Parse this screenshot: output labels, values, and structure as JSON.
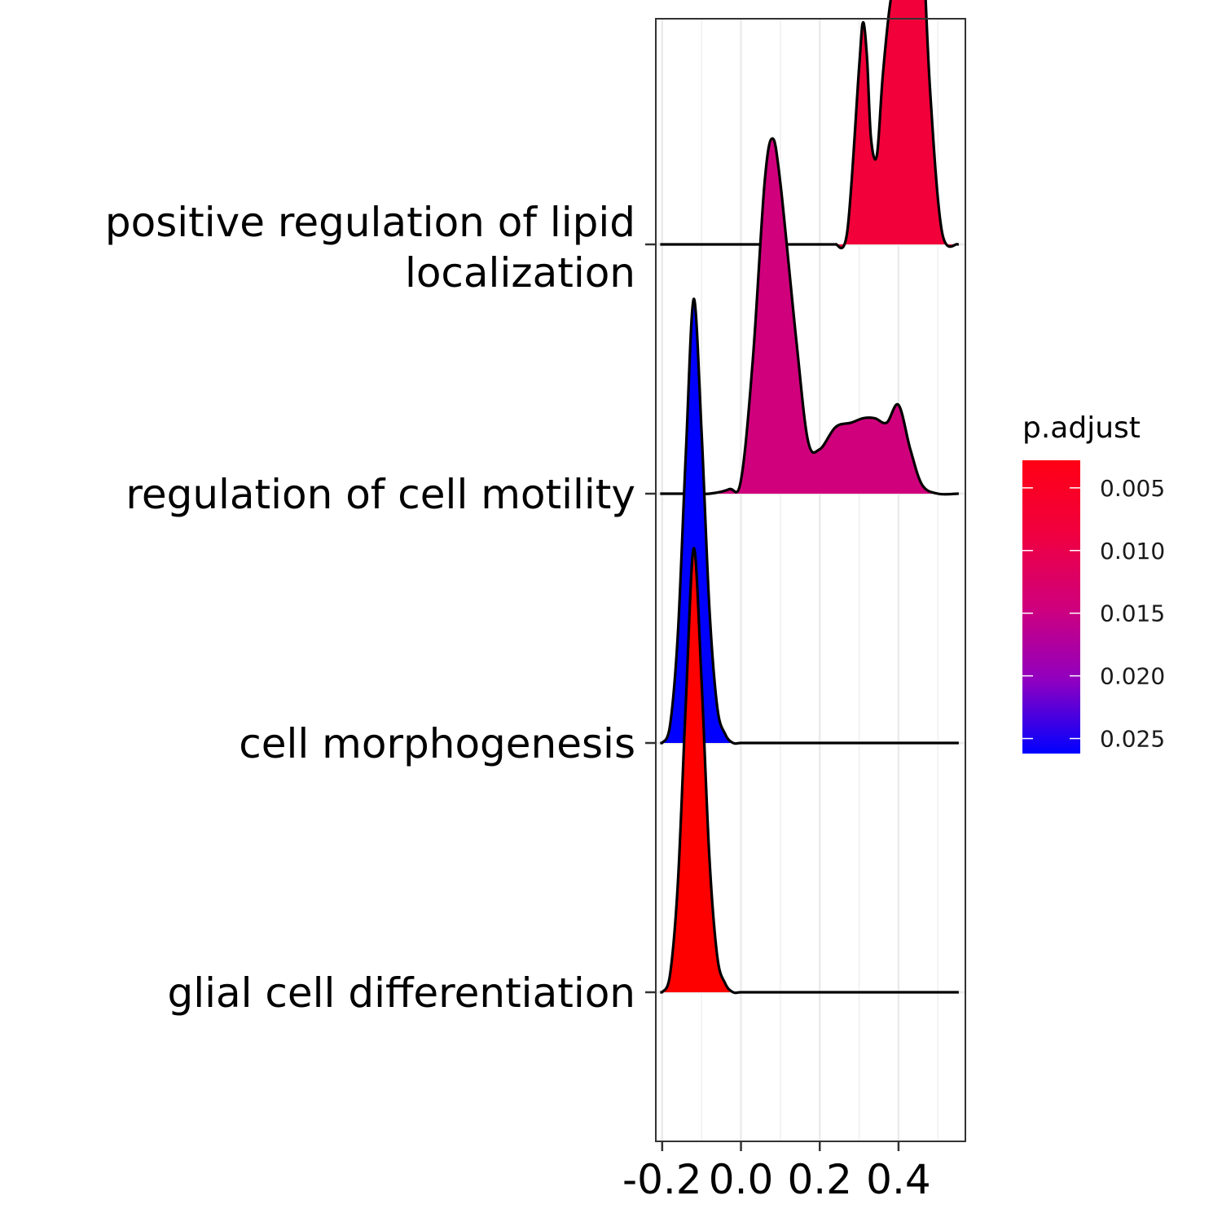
{
  "chart_data": {
    "type": "ridgeline",
    "title": "",
    "xlabel": "",
    "ylabel": "",
    "xlim": [
      -0.21,
      0.58
    ],
    "x_ticks": [
      -0.2,
      0.0,
      0.2,
      0.4
    ],
    "x_tick_labels": [
      "-0.2",
      "0.0",
      "0.2",
      "0.4"
    ],
    "grid": true,
    "legend": {
      "title": "p.adjust",
      "placement": "right",
      "type": "colorbar",
      "color_low_p": "#FF0000",
      "color_high_p": "#0000FF",
      "range": [
        0.0028,
        0.0262
      ],
      "ticks": [
        0.005,
        0.01,
        0.015,
        0.02,
        0.025
      ],
      "tick_labels": [
        "0.005",
        "0.010",
        "0.015",
        "0.020",
        "0.025"
      ]
    },
    "series": [
      {
        "name": "positive regulation of lipid localization",
        "label_lines": [
          "positive regulation of lipid",
          "localization"
        ],
        "p_adjust": 0.0085,
        "fill": "#F2003A",
        "density_x": [
          0.24,
          0.27,
          0.3,
          0.31,
          0.32,
          0.33,
          0.345,
          0.36,
          0.38,
          0.4,
          0.42,
          0.44,
          0.46,
          0.48,
          0.51,
          0.55
        ],
        "density_y": [
          0.0,
          0.03,
          0.4,
          0.5,
          0.42,
          0.24,
          0.2,
          0.38,
          0.55,
          0.61,
          0.72,
          0.95,
          0.72,
          0.35,
          0.03,
          0.0
        ]
      },
      {
        "name": "regulation of cell motility",
        "label_lines": [
          "regulation of cell motility"
        ],
        "p_adjust": 0.016,
        "fill": "#D0007C",
        "density_x": [
          -0.16,
          -0.13,
          -0.08,
          -0.03,
          0.0,
          0.03,
          0.06,
          0.08,
          0.1,
          0.14,
          0.17,
          0.2,
          0.24,
          0.28,
          0.31,
          0.34,
          0.37,
          0.4,
          0.43,
          0.46,
          0.5,
          0.55
        ],
        "density_y": [
          0.0,
          0.0,
          0.0,
          0.01,
          0.03,
          0.3,
          0.7,
          0.8,
          0.7,
          0.35,
          0.12,
          0.1,
          0.15,
          0.16,
          0.17,
          0.17,
          0.16,
          0.2,
          0.1,
          0.02,
          0.0,
          0.0
        ]
      },
      {
        "name": "cell morphogenesis",
        "label_lines": [
          "cell morphogenesis"
        ],
        "p_adjust": 0.0262,
        "fill": "#0000FF",
        "density_x": [
          -0.2,
          -0.18,
          -0.16,
          -0.14,
          -0.12,
          -0.1,
          -0.08,
          -0.06,
          -0.04,
          -0.02,
          0.0,
          0.04,
          0.1,
          0.2,
          0.3,
          0.4,
          0.5,
          0.55
        ],
        "density_y": [
          0.0,
          0.04,
          0.25,
          0.65,
          1.0,
          0.7,
          0.3,
          0.08,
          0.02,
          0.0,
          0.0,
          0.0,
          0.0,
          0.0,
          0.0,
          0.0,
          0.0,
          0.0
        ]
      },
      {
        "name": "glial cell differentiation",
        "label_lines": [
          "glial cell differentiation"
        ],
        "p_adjust": 0.0028,
        "fill": "#FF0000",
        "density_x": [
          -0.2,
          -0.18,
          -0.16,
          -0.14,
          -0.12,
          -0.1,
          -0.08,
          -0.06,
          -0.04,
          -0.02,
          0.0,
          0.04,
          0.1,
          0.2,
          0.3,
          0.4,
          0.5,
          0.55
        ],
        "density_y": [
          0.0,
          0.04,
          0.25,
          0.65,
          1.0,
          0.7,
          0.3,
          0.08,
          0.02,
          0.0,
          0.0,
          0.0,
          0.0,
          0.0,
          0.0,
          0.0,
          0.0,
          0.0
        ]
      }
    ]
  }
}
